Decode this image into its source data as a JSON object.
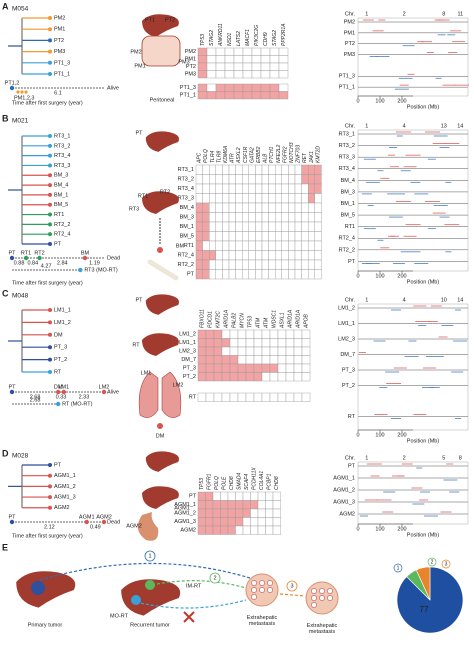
{
  "panels": [
    {
      "label": "A",
      "patient": "M054",
      "tree": {
        "leaves": [
          "PM2",
          "PM1",
          "PT2",
          "PM3",
          "PT1_3",
          "PT1_1"
        ],
        "colors": [
          "#f29a2e",
          "#f29a2e",
          "#2f6bb3",
          "#f29a2e",
          "#3aa0d8",
          "#3aa0d8"
        ]
      },
      "timeline": {
        "events": [
          "PT1,2"
        ],
        "colors": [
          "#2f6bb3"
        ],
        "concurrent": "PM1,2,3",
        "intervals": [
          6.1
        ],
        "outcome": "Alive"
      },
      "time_axis_label": "Time after first surgery (year)",
      "organ_labels": [
        "PT1",
        "PT2",
        "PM1",
        "PM2",
        "PM3",
        "Peritoneal"
      ],
      "genes": [
        "TP53",
        "STAG2",
        "ANKRD11",
        "NSD1",
        "LATS2",
        "MACF1",
        "PIK3C2G",
        "CDH9",
        "STAG2",
        "PPP2R1A"
      ],
      "sample_groups": [
        [
          "PM2",
          "PM1",
          "PT2",
          "PM3"
        ],
        [
          "PT1_3",
          "PT1_1"
        ]
      ],
      "mutations": [
        [
          [
            1,
            0,
            0,
            0,
            0,
            0,
            0,
            0,
            0,
            0
          ],
          [
            1,
            0,
            0,
            0,
            0,
            0,
            0,
            0,
            0,
            0
          ],
          [
            1,
            0,
            0,
            0,
            0,
            0,
            0,
            0,
            0,
            0
          ],
          [
            1,
            0,
            0,
            0,
            0,
            0,
            0,
            0,
            0,
            0
          ]
        ],
        [
          [
            1,
            0,
            1,
            1,
            1,
            1,
            1,
            1,
            1,
            0
          ],
          [
            1,
            1,
            1,
            1,
            1,
            1,
            1,
            1,
            1,
            1
          ]
        ]
      ],
      "cnv": {
        "chr_label": "Chr.",
        "chromosomes": [
          "1",
          "2",
          "8",
          "11"
        ],
        "sample_groups": [
          [
            "PM2",
            "PM1",
            "PT2",
            "PM3"
          ],
          [
            "PT1_3",
            "PT1_1"
          ]
        ],
        "xlim": [
          0,
          250
        ],
        "xticks": [
          0,
          100,
          200
        ],
        "xlabel": "Position (Mb)"
      }
    },
    {
      "label": "B",
      "patient": "M021",
      "tree": {
        "leaves": [
          "RT3_1",
          "RT3_2",
          "RT3_4",
          "RT3_3",
          "BM_3",
          "BM_4",
          "BM_1",
          "BM_5",
          "RT1",
          "RT2_2",
          "RT2_4",
          "PT"
        ],
        "colors": [
          "#3aa0d8",
          "#3aa0d8",
          "#3aa0d8",
          "#3aa0d8",
          "#d9534f",
          "#d9534f",
          "#d9534f",
          "#d9534f",
          "#2e9e5a",
          "#2e9e5a",
          "#2e9e5a",
          "#2f4f9f"
        ]
      },
      "timeline": {
        "events": [
          "PT",
          "RT1",
          "RT2",
          "BM"
        ],
        "colors": [
          "#2f4f9f",
          "#2e9e5a",
          "#2e9e5a",
          "#d9534f"
        ],
        "intervals": [
          0.88,
          0.84,
          2.84,
          1.19
        ],
        "outcome": "Dead",
        "total": 4.27,
        "total_color": "#3aa0d8",
        "note": "RT3 (MO-RT)"
      },
      "time_axis_label": "Time after first surgery (year)",
      "organ_labels": [
        "PT",
        "RT1",
        "RT2",
        "RT3",
        "BM"
      ],
      "genes": [
        "APC",
        "POLQ",
        "TLR4",
        "TLR8",
        "KDM6A",
        "ATR",
        "ASXL2",
        "CSF1R",
        "GATA2",
        "ERBB2",
        "ALB",
        "PTCH1",
        "NFE2L2",
        "FGFR2",
        "NOTCH3",
        "ZNF703",
        "RET",
        "JAK1",
        "KMT2D"
      ],
      "sample_groups": [
        [
          "RT3_1",
          "RT3_2",
          "RT3_4",
          "RT3_3",
          "BM_4",
          "BM_3",
          "BM_1",
          "BM_5",
          "RT1",
          "RT2_4",
          "RT2_2",
          "PT"
        ]
      ],
      "mutations": [
        [
          [
            0,
            0,
            0,
            0,
            0,
            0,
            0,
            0,
            0,
            0,
            0,
            0,
            0,
            0,
            0,
            0,
            1,
            1,
            1
          ],
          [
            0,
            0,
            0,
            0,
            0,
            0,
            0,
            0,
            0,
            0,
            0,
            0,
            0,
            0,
            0,
            0,
            1,
            1,
            1
          ],
          [
            0,
            0,
            0,
            0,
            0,
            0,
            0,
            0,
            0,
            0,
            0,
            0,
            0,
            0,
            0,
            0,
            0,
            1,
            1
          ],
          [
            0,
            0,
            0,
            0,
            0,
            0,
            0,
            0,
            0,
            0,
            0,
            0,
            0,
            0,
            0,
            0,
            0,
            1,
            0
          ],
          [
            1,
            1,
            0,
            0,
            0,
            0,
            0,
            0,
            0,
            0,
            0,
            0,
            0,
            0,
            0,
            0,
            0,
            0,
            0
          ],
          [
            1,
            1,
            0,
            0,
            0,
            0,
            0,
            0,
            0,
            0,
            0,
            0,
            0,
            0,
            0,
            0,
            0,
            0,
            0
          ],
          [
            1,
            1,
            0,
            0,
            0,
            0,
            0,
            0,
            0,
            0,
            0,
            0,
            0,
            0,
            0,
            0,
            0,
            0,
            0
          ],
          [
            1,
            1,
            0,
            0,
            0,
            0,
            0,
            0,
            0,
            0,
            0,
            0,
            0,
            0,
            0,
            0,
            0,
            0,
            0
          ],
          [
            1,
            0,
            0,
            0,
            0,
            0,
            0,
            0,
            0,
            0,
            0,
            0,
            0,
            0,
            0,
            0,
            0,
            0,
            0
          ],
          [
            1,
            1,
            1,
            0,
            0,
            0,
            0,
            0,
            0,
            0,
            0,
            0,
            0,
            0,
            0,
            0,
            0,
            0,
            0
          ],
          [
            1,
            1,
            0,
            0,
            0,
            0,
            0,
            0,
            0,
            0,
            0,
            0,
            0,
            0,
            0,
            0,
            0,
            0,
            0
          ],
          [
            1,
            1,
            0,
            0,
            0,
            0,
            0,
            0,
            0,
            0,
            0,
            0,
            0,
            0,
            0,
            0,
            0,
            0,
            0
          ]
        ]
      ],
      "cnv": {
        "chr_label": "Chr.",
        "chromosomes": [
          "1",
          "4",
          "13",
          "14"
        ],
        "sample_groups": [
          [
            "RT3_1",
            "RT3_2",
            "RT3_3",
            "RT3_4",
            "BM_4",
            "BM_3",
            "BM_1",
            "BM_5",
            "RT1",
            "RT2_4",
            "RT2_2",
            "PT"
          ]
        ],
        "xlim": [
          0,
          250
        ],
        "xticks": [
          0,
          100,
          200
        ],
        "xlabel": "Position (Mb)"
      }
    },
    {
      "label": "C",
      "patient": "M048",
      "tree": {
        "leaves": [
          "LM1_1",
          "LM1_2",
          "DM",
          "PT_3",
          "PT_2",
          "RT"
        ],
        "colors": [
          "#d9534f",
          "#d9534f",
          "#d9534f",
          "#2f4f9f",
          "#2f4f9f",
          "#3aa0d8"
        ]
      },
      "timeline": {
        "events": [
          "PT",
          "DM",
          "LM1",
          "LM2"
        ],
        "colors": [
          "#2f4f9f",
          "#d9534f",
          "#d9534f",
          "#d9534f"
        ],
        "intervals": [
          2.68,
          0.33,
          2.33
        ],
        "outcome": "Alive",
        "total": 2.68,
        "total_color": "#3aa0d8",
        "note": "RT (MO-RT)"
      },
      "organ_labels": [
        "PT",
        "RT",
        "LM1",
        "LM2",
        "DM"
      ],
      "genes": [
        "FBXO11",
        "PDCD1",
        "KMT2C",
        "ARID1A",
        "PALB2",
        "MYCN",
        "TP53",
        "ATM",
        "ATM",
        "WDSC1",
        "ASXL1",
        "ARID1A",
        "ARID1A",
        "APOB"
      ],
      "sample_groups": [
        [
          "LM1_2",
          "LM1_1",
          "LM2_3",
          "DM_7",
          "PT_3",
          "PT_2"
        ],
        [
          "RT"
        ]
      ],
      "mutations": [
        [
          [
            1,
            1,
            1,
            0,
            0,
            0,
            0,
            0,
            0,
            0,
            0,
            0,
            0,
            0
          ],
          [
            1,
            1,
            1,
            1,
            0,
            0,
            0,
            0,
            0,
            0,
            0,
            0,
            0,
            0
          ],
          [
            1,
            1,
            1,
            0,
            0,
            0,
            0,
            0,
            0,
            0,
            0,
            0,
            0,
            0
          ],
          [
            1,
            1,
            1,
            1,
            1,
            0,
            0,
            0,
            0,
            0,
            0,
            0,
            0,
            0
          ],
          [
            1,
            1,
            1,
            1,
            1,
            1,
            1,
            1,
            1,
            1,
            0,
            0,
            0,
            0
          ],
          [
            1,
            1,
            1,
            1,
            1,
            1,
            1,
            1,
            0,
            0,
            0,
            0,
            0,
            0
          ]
        ],
        [
          [
            0,
            0,
            0,
            0,
            0,
            0,
            0,
            0,
            0,
            0,
            0,
            0,
            0,
            0
          ]
        ]
      ],
      "cnv": {
        "chr_label": "Chr.",
        "chromosomes": [
          "1",
          "4",
          "10",
          "14"
        ],
        "sample_groups": [
          [
            "LM1_2",
            "LM1_1",
            "LM2_3",
            "DM_7",
            "PT_3",
            "PT_2"
          ],
          [
            "RT"
          ]
        ],
        "xlim": [
          0,
          250
        ],
        "xticks": [
          0,
          100,
          200
        ],
        "xlabel": "Position (Mb)"
      }
    },
    {
      "label": "D",
      "patient": "M028",
      "tree": {
        "leaves": [
          "PT",
          "AGM1_1",
          "AGM1_2",
          "AGM1_3",
          "AGM2"
        ],
        "colors": [
          "#2f4f9f",
          "#d9534f",
          "#d9534f",
          "#d9534f",
          "#d9534f"
        ]
      },
      "timeline": {
        "events": [
          "PT",
          "AGM1",
          "AGM2"
        ],
        "colors": [
          "#2f4f9f",
          "#d9534f",
          "#d9534f"
        ],
        "intervals": [
          2.12,
          0.49
        ],
        "outcome": "Dead"
      },
      "time_axis_label": "Time after first surgery (year)",
      "organ_labels": [
        "AGM1",
        "AGM2"
      ],
      "genes": [
        "TP53",
        "FGFR1",
        "POLQ",
        "POLE",
        "CHD8",
        "SMAD4",
        "SCAF4",
        "PCDH11X",
        "COL4A1",
        "PCBP1",
        "CHD8"
      ],
      "sample_groups": [
        [
          "PT",
          "AGM1_1",
          "AGM1_2",
          "AGM1_3",
          "AGM2"
        ]
      ],
      "mutations": [
        [
          [
            1,
            1,
            0,
            0,
            0,
            0,
            0,
            0,
            0,
            0,
            0
          ],
          [
            1,
            1,
            1,
            1,
            1,
            1,
            1,
            1,
            0,
            0,
            0
          ],
          [
            1,
            1,
            1,
            1,
            1,
            1,
            1,
            0,
            0,
            0,
            0
          ],
          [
            1,
            1,
            1,
            1,
            1,
            1,
            0,
            0,
            0,
            0,
            0
          ],
          [
            1,
            1,
            1,
            1,
            1,
            0,
            0,
            0,
            0,
            0,
            0
          ]
        ]
      ],
      "cnv": {
        "chr_label": "Chr.",
        "chromosomes": [
          "1",
          "2",
          "5",
          "8"
        ],
        "sample_groups": [
          [
            "PT",
            "AGM1_1",
            "AGM1_2",
            "AGM1_3",
            "AGM2"
          ]
        ],
        "xlim": [
          0,
          250
        ],
        "xticks": [
          0,
          100,
          200
        ],
        "xlabel": "Position (Mb)"
      }
    }
  ],
  "panel_e": {
    "label": "E",
    "stages": [
      "Primary tumor",
      "Recurrent tumor",
      "Extrahepatic metastasis",
      "Extrahepatic metastasis"
    ],
    "route_labels": [
      "IM-RT",
      "MO-RT"
    ],
    "routes": [
      "1",
      "2",
      "3"
    ],
    "route_colors": [
      "#2f6bb3",
      "#5cb85c",
      "#e8842c"
    ],
    "pie": {
      "type": "pie",
      "values": [
        77,
        5,
        6
      ],
      "colors": [
        "#1f4fa0",
        "#5cb85c",
        "#e8842c"
      ]
    }
  }
}
